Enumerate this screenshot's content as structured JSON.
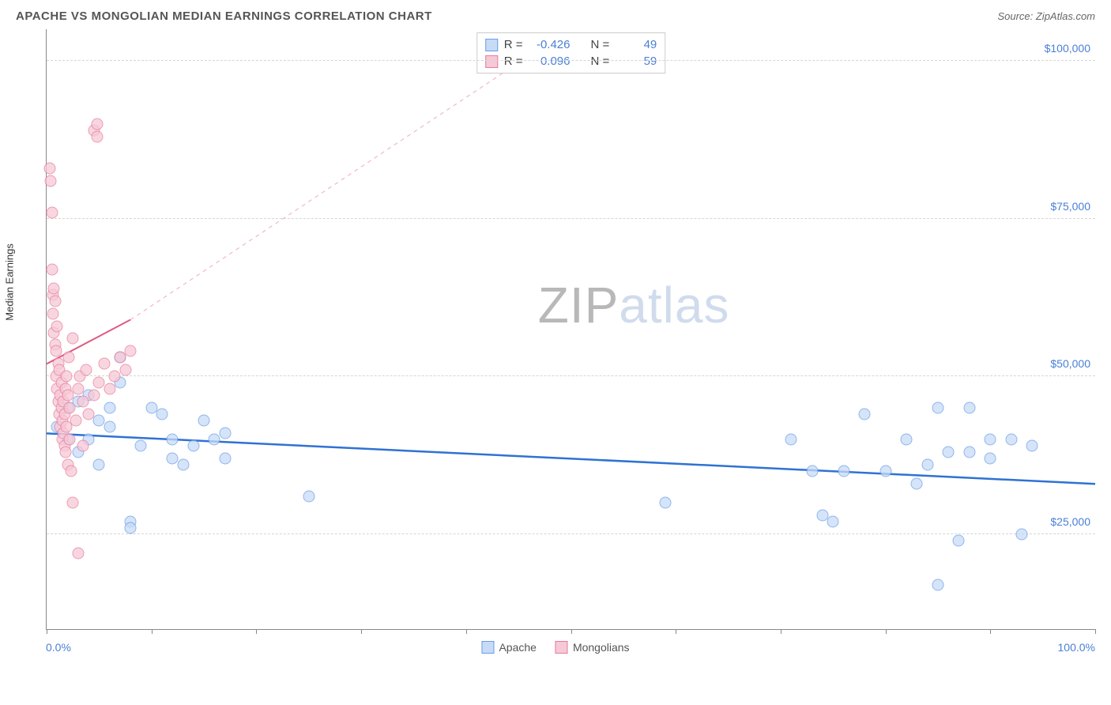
{
  "title": "APACHE VS MONGOLIAN MEDIAN EARNINGS CORRELATION CHART",
  "source_label": "Source: ZipAtlas.com",
  "ylabel": "Median Earnings",
  "watermark": {
    "part1": "ZIP",
    "part2": "atlas"
  },
  "chart": {
    "type": "scatter",
    "xlim": [
      0,
      100
    ],
    "ylim": [
      10000,
      105000
    ],
    "x_tick_positions": [
      0,
      10,
      20,
      30,
      40,
      50,
      60,
      70,
      80,
      90,
      100
    ],
    "x_start_label": "0.0%",
    "x_end_label": "100.0%",
    "y_gridlines": [
      25000,
      50000,
      75000,
      100000
    ],
    "y_tick_labels": [
      "$25,000",
      "$50,000",
      "$75,000",
      "$100,000"
    ],
    "grid_color": "#d5d5d5",
    "axis_color": "#888888",
    "background_color": "#ffffff",
    "tick_label_color": "#4a7fd6",
    "label_fontsize": 13,
    "tick_fontsize": 14
  },
  "series": [
    {
      "name": "Apache",
      "marker_fill": "#c7dbf6",
      "marker_stroke": "#6a9de8",
      "marker_size": 15,
      "marker_opacity": 0.75,
      "trend": {
        "x1": 0,
        "y1": 41000,
        "x2": 100,
        "y2": 33000,
        "color": "#2f72d4",
        "width": 2.5,
        "dash": "none"
      },
      "stats": {
        "R": "-0.426",
        "N": "49"
      },
      "points": [
        [
          1,
          42000
        ],
        [
          2,
          40000
        ],
        [
          2,
          45000
        ],
        [
          3,
          38000
        ],
        [
          3,
          46000
        ],
        [
          4,
          47000
        ],
        [
          4,
          40000
        ],
        [
          5,
          43000
        ],
        [
          5,
          36000
        ],
        [
          6,
          45000
        ],
        [
          6,
          42000
        ],
        [
          7,
          49000
        ],
        [
          7,
          53000
        ],
        [
          8,
          27000
        ],
        [
          8,
          26000
        ],
        [
          9,
          39000
        ],
        [
          10,
          45000
        ],
        [
          11,
          44000
        ],
        [
          12,
          37000
        ],
        [
          12,
          40000
        ],
        [
          13,
          36000
        ],
        [
          14,
          39000
        ],
        [
          15,
          43000
        ],
        [
          16,
          40000
        ],
        [
          17,
          41000
        ],
        [
          17,
          37000
        ],
        [
          25,
          31000
        ],
        [
          59,
          30000
        ],
        [
          71,
          40000
        ],
        [
          73,
          35000
        ],
        [
          74,
          28000
        ],
        [
          75,
          27000
        ],
        [
          76,
          35000
        ],
        [
          78,
          44000
        ],
        [
          80,
          35000
        ],
        [
          82,
          40000
        ],
        [
          83,
          33000
        ],
        [
          84,
          36000
        ],
        [
          85,
          45000
        ],
        [
          86,
          38000
        ],
        [
          85,
          17000
        ],
        [
          87,
          24000
        ],
        [
          88,
          45000
        ],
        [
          88,
          38000
        ],
        [
          90,
          40000
        ],
        [
          90,
          37000
        ],
        [
          92,
          40000
        ],
        [
          93,
          25000
        ],
        [
          94,
          39000
        ]
      ]
    },
    {
      "name": "Mongolians",
      "marker_fill": "#f6c9d6",
      "marker_stroke": "#e87a9c",
      "marker_size": 15,
      "marker_opacity": 0.75,
      "trend_solid": {
        "x1": 0,
        "y1": 52000,
        "x2": 8,
        "y2": 59000,
        "color": "#e05a82",
        "width": 2,
        "dash": "none"
      },
      "trend_dashed": {
        "x1": 8,
        "y1": 59000,
        "x2": 48,
        "y2": 103000,
        "color": "#f3b6c8",
        "width": 1.2,
        "dash": "5,5"
      },
      "stats": {
        "R": "0.096",
        "N": "59"
      },
      "points": [
        [
          0.3,
          83000
        ],
        [
          0.4,
          81000
        ],
        [
          0.5,
          67000
        ],
        [
          0.5,
          76000
        ],
        [
          0.6,
          63000
        ],
        [
          0.6,
          60000
        ],
        [
          0.7,
          64000
        ],
        [
          0.7,
          57000
        ],
        [
          0.8,
          62000
        ],
        [
          0.8,
          55000
        ],
        [
          0.9,
          54000
        ],
        [
          0.9,
          50000
        ],
        [
          1.0,
          58000
        ],
        [
          1.0,
          48000
        ],
        [
          1.1,
          52000
        ],
        [
          1.1,
          46000
        ],
        [
          1.2,
          51000
        ],
        [
          1.2,
          44000
        ],
        [
          1.3,
          47000
        ],
        [
          1.3,
          42000
        ],
        [
          1.4,
          45000
        ],
        [
          1.4,
          49000
        ],
        [
          1.5,
          40000
        ],
        [
          1.5,
          43000
        ],
        [
          1.6,
          41000
        ],
        [
          1.6,
          46000
        ],
        [
          1.7,
          39000
        ],
        [
          1.7,
          44000
        ],
        [
          1.8,
          48000
        ],
        [
          1.8,
          38000
        ],
        [
          1.9,
          42000
        ],
        [
          1.9,
          50000
        ],
        [
          2.0,
          36000
        ],
        [
          2.0,
          47000
        ],
        [
          2.1,
          53000
        ],
        [
          2.2,
          40000
        ],
        [
          2.2,
          45000
        ],
        [
          2.3,
          35000
        ],
        [
          2.5,
          56000
        ],
        [
          2.5,
          30000
        ],
        [
          2.8,
          43000
        ],
        [
          3.0,
          22000
        ],
        [
          3.0,
          48000
        ],
        [
          3.2,
          50000
        ],
        [
          3.5,
          46000
        ],
        [
          3.5,
          39000
        ],
        [
          3.8,
          51000
        ],
        [
          4.0,
          44000
        ],
        [
          4.5,
          47000
        ],
        [
          4.5,
          89000
        ],
        [
          4.8,
          90000
        ],
        [
          4.8,
          88000
        ],
        [
          5.0,
          49000
        ],
        [
          5.5,
          52000
        ],
        [
          6.0,
          48000
        ],
        [
          6.5,
          50000
        ],
        [
          7.0,
          53000
        ],
        [
          7.5,
          51000
        ],
        [
          8.0,
          54000
        ]
      ]
    }
  ],
  "bottom_legend": [
    {
      "label": "Apache",
      "fill": "#c7dbf6",
      "stroke": "#6a9de8"
    },
    {
      "label": "Mongolians",
      "fill": "#f6c9d6",
      "stroke": "#e87a9c"
    }
  ],
  "stats_box": {
    "rows": [
      {
        "swatch_fill": "#c7dbf6",
        "swatch_stroke": "#6a9de8",
        "R": "-0.426",
        "N": "49"
      },
      {
        "swatch_fill": "#f6c9d6",
        "swatch_stroke": "#e87a9c",
        "R": "0.096",
        "N": "59"
      }
    ],
    "label_R": "R =",
    "label_N": "N ="
  }
}
